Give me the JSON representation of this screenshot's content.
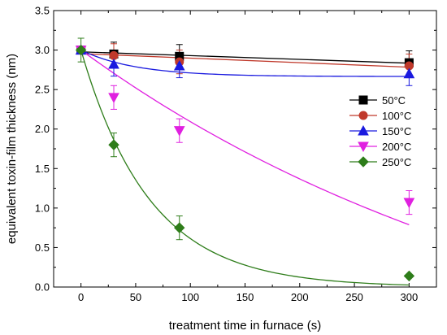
{
  "chart_data": {
    "type": "scatter",
    "title": "",
    "xlabel": "treatment time in furnace (s)",
    "ylabel": "equivalent toxin-film thickness (nm)",
    "xlim": [
      -25,
      325
    ],
    "ylim": [
      0,
      3.5
    ],
    "xticks": [
      0,
      50,
      100,
      150,
      200,
      250,
      300
    ],
    "yticks": [
      0.0,
      0.5,
      1.0,
      1.5,
      2.0,
      2.5,
      3.0,
      3.5
    ],
    "x_tick_labels": [
      "0",
      "50",
      "100",
      "150",
      "200",
      "250",
      "300"
    ],
    "y_tick_labels": [
      "0.0",
      "0.5",
      "1.0",
      "1.5",
      "2.0",
      "2.5",
      "3.0",
      "3.5"
    ],
    "grid": false,
    "legend_position": "right",
    "series": [
      {
        "name": "50°C",
        "color": "#000000",
        "marker": "square",
        "x": [
          0,
          30,
          90,
          300
        ],
        "y": [
          3.0,
          2.95,
          2.92,
          2.84
        ],
        "err": [
          0.0,
          0.15,
          0.15,
          0.15
        ],
        "fit": "linear"
      },
      {
        "name": "100°C",
        "color": "#c0392b",
        "marker": "circle",
        "x": [
          0,
          30,
          90,
          300
        ],
        "y": [
          3.0,
          2.93,
          2.85,
          2.8
        ],
        "err": [
          0.0,
          0.15,
          0.15,
          0.15
        ],
        "fit": "linear"
      },
      {
        "name": "150°C",
        "color": "#1a1adf",
        "marker": "triangle-up",
        "x": [
          0,
          30,
          90,
          300
        ],
        "y": [
          3.0,
          2.82,
          2.8,
          2.7
        ],
        "err": [
          0.0,
          0.15,
          0.15,
          0.15
        ],
        "fit": "exp",
        "fit_params": {
          "c": 2.665,
          "a": 0.335,
          "tau": 50
        }
      },
      {
        "name": "200°C",
        "color": "#e020e0",
        "marker": "triangle-down",
        "x": [
          0,
          30,
          90,
          300
        ],
        "y": [
          3.0,
          2.4,
          1.98,
          1.07
        ],
        "err": [
          0.0,
          0.15,
          0.15,
          0.15
        ],
        "fit": "exp",
        "fit_params": {
          "c": -1.53,
          "a": 4.53,
          "tau": 448
        }
      },
      {
        "name": "250°C",
        "color": "#2e7d1a",
        "marker": "diamond",
        "x": [
          0,
          30,
          90,
          300
        ],
        "y": [
          3.0,
          1.8,
          0.75,
          0.14
        ],
        "err": [
          0.15,
          0.15,
          0.15,
          0.0
        ],
        "fit": "exp",
        "fit_params": {
          "c": 0.0,
          "a": 3.0,
          "tau": 63
        }
      }
    ]
  }
}
